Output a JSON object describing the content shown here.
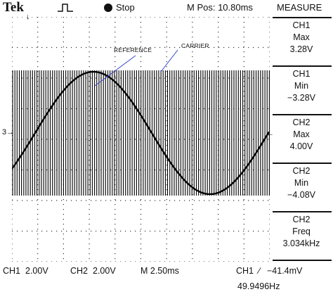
{
  "header": {
    "brand": "Tek",
    "acq_state": "Stop",
    "position": "M Pos: 10.80ms",
    "trigger_icon": "pulse-icon",
    "run_icon": "dot-icon"
  },
  "menu": {
    "title": "MEASURE",
    "items": [
      {
        "channel": "CH1",
        "type": "Max",
        "value": "3.28V"
      },
      {
        "channel": "CH1",
        "type": "Min",
        "value": "−3.28V"
      },
      {
        "channel": "CH2",
        "type": "Max",
        "value": "4.00V"
      },
      {
        "channel": "CH2",
        "type": "Min",
        "value": "−4.08V"
      },
      {
        "channel": "CH2",
        "type": "Freq",
        "value": "3.034kHz"
      }
    ]
  },
  "footer": {
    "ch1_label": "CH1",
    "ch1_scale": "2.00V",
    "ch2_label": "CH2",
    "ch2_scale": "2.00V",
    "timebase": "M 2.50ms",
    "trigger_source": "CH1",
    "trigger_slope": "∕",
    "trigger_level": "−41.4mV",
    "frequency": "49.9496Hz"
  },
  "annotations": {
    "reference": "REFERENCE",
    "carrier": "CARRIER"
  },
  "markers": {
    "ch1_ground": "3→",
    "trigger_position": "↓",
    "right_level": "←"
  },
  "colors": {
    "trace": "#000000",
    "annotation_line": "#3344cc",
    "grid_dot": "#333333"
  }
}
